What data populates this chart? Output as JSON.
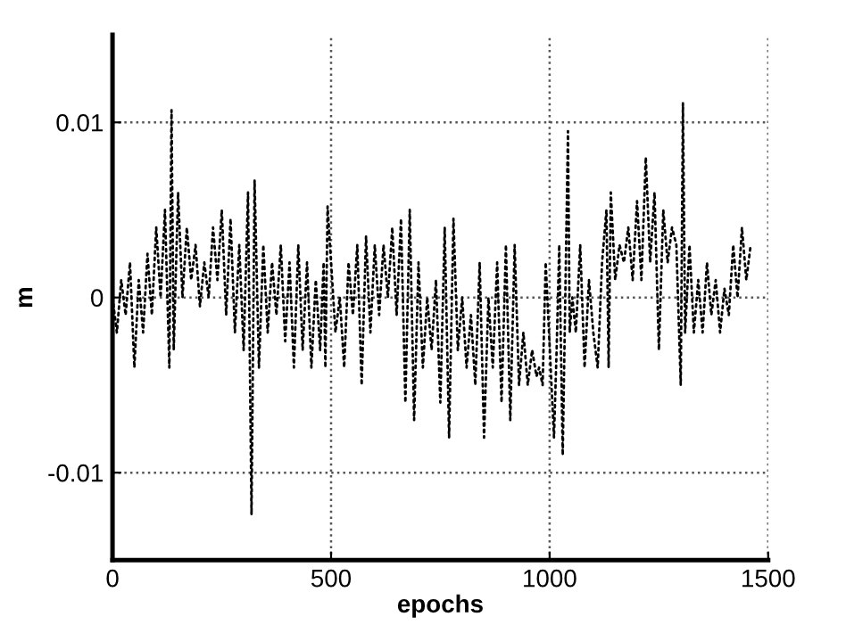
{
  "chart_data": {
    "type": "line",
    "xlabel": "epochs",
    "ylabel": "m",
    "xlim": [
      0,
      1500
    ],
    "xticks": [
      0,
      500,
      1000,
      1500
    ],
    "ylim": [
      -0.015,
      0.015
    ],
    "yticks": [
      -0.01,
      0,
      0.01
    ],
    "grid": true,
    "line_style": "dotted",
    "marker": "none",
    "series": [
      {
        "color": "#000000",
        "x": [
          0,
          10,
          20,
          30,
          40,
          50,
          60,
          70,
          80,
          90,
          100,
          110,
          120,
          130,
          135,
          140,
          150,
          160,
          170,
          180,
          190,
          200,
          210,
          220,
          230,
          240,
          250,
          260,
          270,
          280,
          290,
          300,
          310,
          318,
          325,
          335,
          345,
          355,
          365,
          375,
          385,
          395,
          405,
          415,
          425,
          435,
          445,
          455,
          465,
          475,
          483,
          487,
          492,
          510,
          520,
          530,
          540,
          550,
          560,
          570,
          580,
          590,
          600,
          610,
          620,
          630,
          640,
          650,
          660,
          670,
          680,
          690,
          700,
          710,
          720,
          730,
          740,
          750,
          760,
          770,
          780,
          790,
          800,
          810,
          820,
          830,
          840,
          850,
          860,
          870,
          880,
          890,
          900,
          910,
          920,
          930,
          940,
          950,
          960,
          970,
          976,
          984,
          991,
          1010,
          1016,
          1022,
          1030,
          1042,
          1046,
          1052,
          1060,
          1070,
          1080,
          1090,
          1100,
          1110,
          1120,
          1130,
          1135,
          1140,
          1150,
          1160,
          1170,
          1180,
          1190,
          1200,
          1210,
          1220,
          1230,
          1240,
          1250,
          1260,
          1270,
          1280,
          1290,
          1300,
          1305,
          1310,
          1320,
          1330,
          1340,
          1350,
          1360,
          1370,
          1380,
          1390,
          1400,
          1410,
          1420,
          1430,
          1440,
          1450,
          1460
        ],
        "values": [
          0,
          -0.002,
          0.001,
          -0.001,
          0.002,
          -0.004,
          0.001,
          -0.002,
          0.0025,
          -0.001,
          0.004,
          0,
          0.005,
          -0.004,
          0.0107,
          -0.003,
          0.006,
          0,
          0.004,
          0.001,
          0.003,
          -0.0005,
          0.002,
          0,
          0.004,
          0.001,
          0.005,
          -0.001,
          0.0045,
          -0.002,
          0.003,
          -0.003,
          0.006,
          -0.0124,
          0.0067,
          -0.004,
          0.003,
          -0.002,
          0.002,
          -0.001,
          0.003,
          -0.0025,
          0.002,
          -0.004,
          0.003,
          -0.003,
          0.002,
          -0.004,
          0.001,
          -0.003,
          0.002,
          -0.004,
          0.0052,
          -0.002,
          0,
          -0.004,
          0.002,
          -0.001,
          0.003,
          -0.005,
          0.0035,
          -0.002,
          0.003,
          -0.001,
          0.003,
          0,
          0.004,
          -0.001,
          0.0045,
          -0.006,
          0.005,
          -0.007,
          0.002,
          -0.004,
          0,
          -0.003,
          0.001,
          -0.006,
          0.004,
          -0.008,
          0.0045,
          -0.003,
          0,
          -0.004,
          -0.001,
          -0.005,
          0.002,
          -0.008,
          0,
          -0.004,
          0.002,
          -0.006,
          0.003,
          -0.007,
          0.003,
          -0.005,
          -0.002,
          -0.005,
          -0.003,
          -0.0045,
          -0.004,
          -0.005,
          0.002,
          -0.008,
          -0.003,
          0.003,
          -0.009,
          0.0095,
          -0.002,
          0,
          -0.002,
          0.003,
          -0.004,
          0.001,
          -0.002,
          -0.004,
          0.002,
          0.005,
          -0.004,
          0.006,
          0.001,
          0.003,
          0.002,
          0.004,
          0.001,
          0.0055,
          0.001,
          0.008,
          0.002,
          0.006,
          -0.003,
          0.005,
          0.002,
          0.004,
          0.003,
          -0.005,
          0.0111,
          -0.002,
          0.003,
          -0.002,
          0.001,
          -0.002,
          0.002,
          -0.001,
          0.001,
          -0.002,
          0.0005,
          -0.001,
          0.003,
          0,
          0.004,
          0.001,
          0.003
        ]
      }
    ]
  }
}
